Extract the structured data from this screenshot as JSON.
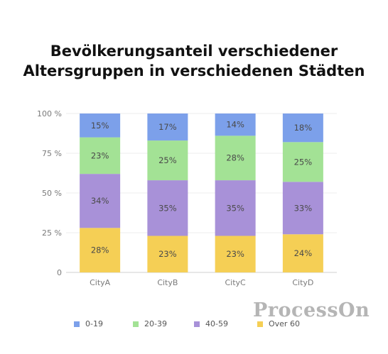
{
  "chart_data": {
    "type": "bar",
    "stacked": true,
    "title_lines": [
      "Bevölkerungsanteil verschiedener",
      "Altersgruppen in verschiedenen Städten"
    ],
    "categories": [
      "CityA",
      "CityB",
      "CityC",
      "CityD"
    ],
    "y_ticks": [
      "0",
      "25 %",
      "50 %",
      "75 %",
      "100 %"
    ],
    "ylim": [
      0,
      100
    ],
    "series": [
      {
        "name": "Over 60",
        "color": "#f5cf55",
        "values": [
          28,
          23,
          23,
          24
        ],
        "labels": [
          "28%",
          "23%",
          "23%",
          "24%"
        ]
      },
      {
        "name": "40-59",
        "color": "#a891d8",
        "values": [
          34,
          35,
          35,
          33
        ],
        "labels": [
          "34%",
          "35%",
          "35%",
          "33%"
        ]
      },
      {
        "name": "20-39",
        "color": "#a3e295",
        "values": [
          23,
          25,
          28,
          25
        ],
        "labels": [
          "23%",
          "25%",
          "28%",
          "25%"
        ]
      },
      {
        "name": "0-19",
        "color": "#7ca0ea",
        "values": [
          15,
          17,
          14,
          18
        ],
        "labels": [
          "15%",
          "17%",
          "14%",
          "18%"
        ]
      }
    ],
    "legend": [
      {
        "name": "0-19",
        "color": "#7ca0ea"
      },
      {
        "name": "20-39",
        "color": "#a3e295"
      },
      {
        "name": "40-59",
        "color": "#a891d8"
      },
      {
        "name": "Over 60",
        "color": "#f5cf55"
      }
    ],
    "legend_position": "bottom",
    "grid": true
  },
  "watermark": "ProcessOn"
}
